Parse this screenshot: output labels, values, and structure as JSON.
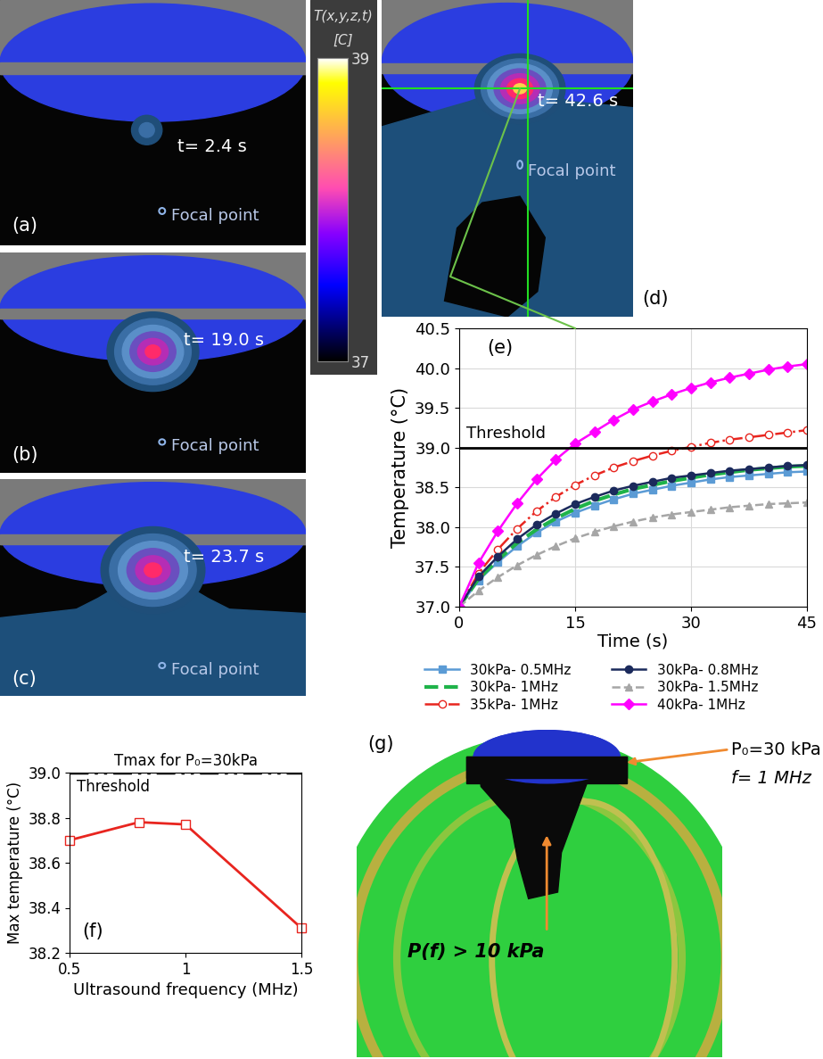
{
  "colorbar": {
    "title": "T(x,y,z,t)",
    "unit": "[C]",
    "range": [
      37,
      39
    ],
    "ticks": [
      37,
      39
    ]
  },
  "snapshots": [
    {
      "label": "(a)",
      "time": "t= 2.4 s",
      "focal_point": "Focal point"
    },
    {
      "label": "(b)",
      "time": "t= 19.0 s",
      "focal_point": "Focal point"
    },
    {
      "label": "(c)",
      "time": "t= 23.7 s",
      "focal_point": "Focal point"
    },
    {
      "label": "(d)",
      "time": "t= 42.6 s",
      "focal_point": "Focal point"
    }
  ],
  "chart_data": [
    {
      "type": "line",
      "label": "(e)",
      "xlabel": "Time (s)",
      "ylabel": "Temperature (°C)",
      "x": [
        0,
        2.5,
        5,
        7.5,
        10,
        12.5,
        15,
        17.5,
        20,
        22.5,
        25,
        27.5,
        30,
        32.5,
        35,
        37.5,
        40,
        42.5,
        45
      ],
      "xlim": [
        0,
        45
      ],
      "ylim": [
        37.0,
        40.5
      ],
      "xticks": [
        0,
        15,
        30,
        45
      ],
      "yticks": [
        37.0,
        37.5,
        38.0,
        38.5,
        39.0,
        39.5,
        40.0,
        40.5
      ],
      "grid": true,
      "legend": "below",
      "threshold": {
        "value": 39.0,
        "label": "Threshold"
      },
      "series": [
        {
          "name": "30kPa- 0.5MHz",
          "color": "#5b9bd5",
          "marker": "square",
          "line_style": "solid",
          "values": [
            37.0,
            37.33,
            37.56,
            37.76,
            37.93,
            38.07,
            38.18,
            38.27,
            38.35,
            38.42,
            38.47,
            38.52,
            38.56,
            38.6,
            38.63,
            38.65,
            38.67,
            38.69,
            38.7
          ]
        },
        {
          "name": "30kPa- 1MHz",
          "color": "#1fb34a",
          "marker": "none",
          "line_style": "dashed",
          "values": [
            37.0,
            37.35,
            37.59,
            37.8,
            37.97,
            38.11,
            38.23,
            38.33,
            38.41,
            38.48,
            38.53,
            38.58,
            38.62,
            38.66,
            38.69,
            38.72,
            38.74,
            38.76,
            38.77
          ]
        },
        {
          "name": "35kPa- 1MHz",
          "color": "#e8251f",
          "marker": "open_circle",
          "line_style": "dashdot",
          "values": [
            37.0,
            37.42,
            37.72,
            37.98,
            38.2,
            38.38,
            38.53,
            38.65,
            38.75,
            38.83,
            38.9,
            38.96,
            39.01,
            39.06,
            39.1,
            39.13,
            39.16,
            39.19,
            39.22
          ]
        },
        {
          "name": "30kPa- 0.8MHz",
          "color": "#1b2a5c",
          "marker": "circle",
          "line_style": "solid",
          "values": [
            37.0,
            37.38,
            37.63,
            37.85,
            38.03,
            38.17,
            38.29,
            38.38,
            38.46,
            38.52,
            38.57,
            38.62,
            38.65,
            38.68,
            38.71,
            38.73,
            38.75,
            38.77,
            38.78
          ]
        },
        {
          "name": "30kPa- 1.5MHz",
          "color": "#a6a6a6",
          "marker": "triangle",
          "line_style": "dashed",
          "values": [
            37.0,
            37.2,
            37.37,
            37.52,
            37.65,
            37.76,
            37.86,
            37.94,
            38.01,
            38.07,
            38.12,
            38.16,
            38.19,
            38.22,
            38.25,
            38.27,
            38.29,
            38.3,
            38.31
          ]
        },
        {
          "name": "40kPa- 1MHz",
          "color": "#ff00ff",
          "marker": "diamond",
          "line_style": "solid",
          "values": [
            37.0,
            37.55,
            37.95,
            38.3,
            38.6,
            38.85,
            39.05,
            39.2,
            39.35,
            39.48,
            39.58,
            39.67,
            39.75,
            39.82,
            39.88,
            39.93,
            39.98,
            40.02,
            40.05
          ]
        }
      ]
    },
    {
      "type": "line",
      "label": "(f)",
      "title": "Tmax for P₀=30kPa",
      "xlabel": "Ultrasound frequency (MHz)",
      "ylabel": "Max temperature (°C)",
      "x": [
        0.5,
        0.8,
        1.0,
        1.5
      ],
      "values": [
        38.7,
        38.78,
        38.77,
        38.31
      ],
      "color": "#e8251f",
      "marker": "open_square",
      "line_style": "solid",
      "xlim": [
        0.5,
        1.5
      ],
      "ylim": [
        38.2,
        39.0
      ],
      "xticks": [
        0.5,
        1,
        1.5
      ],
      "yticks": [
        38.2,
        38.4,
        38.6,
        38.8,
        39.0
      ],
      "grid": false,
      "threshold": {
        "value": 39.0,
        "label": "Threshold"
      }
    }
  ],
  "pressure_map": {
    "label": "(g)",
    "source_pressure": "P₀=30 kPa",
    "frequency": "f= 1 MHz",
    "region": "P(f) > 10 kPa"
  }
}
